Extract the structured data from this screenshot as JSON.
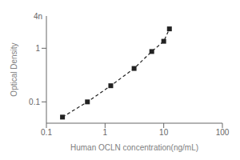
{
  "chart_data": {
    "type": "line",
    "x": [
      0.188,
      0.5,
      1.25,
      3.125,
      6.25,
      10,
      12.5
    ],
    "values": [
      0.052,
      0.1,
      0.2,
      0.42,
      0.87,
      1.35,
      2.3
    ],
    "xlabel": "Human OCLN concentration(ng/mL)",
    "ylabel": "Optical Density",
    "log": true,
    "xlim": [
      0.1,
      100
    ],
    "ylim": [
      0.04,
      4
    ],
    "xticks": [
      0.1,
      1,
      10,
      100
    ],
    "yticks": [
      0.1,
      1
    ],
    "color": "#222222",
    "marker": "square",
    "line_style": "dashed",
    "grid": false,
    "annotations": [
      {
        "text": "4n",
        "y": 4
      }
    ]
  }
}
